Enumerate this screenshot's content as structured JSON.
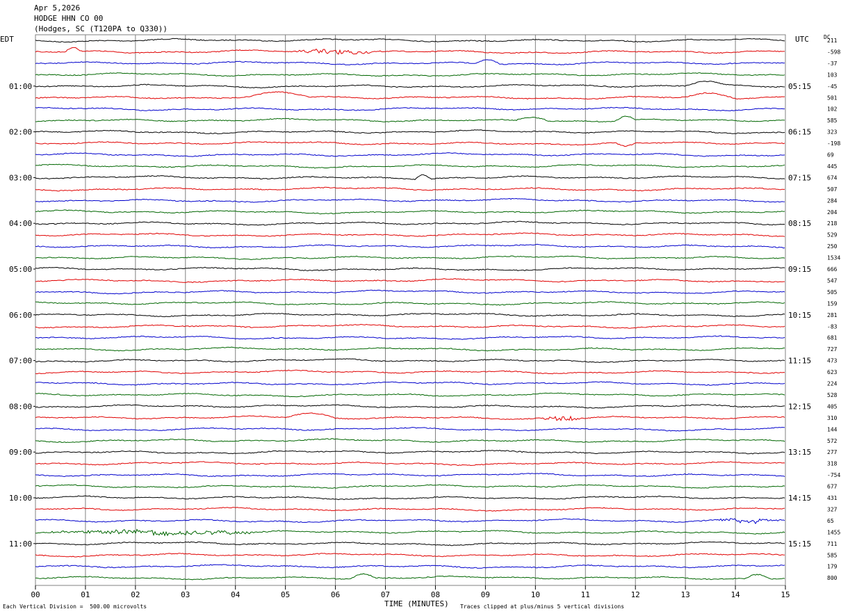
{
  "header": {
    "date": "Apr 5,2026",
    "station": "HODGE HHN CO 00",
    "location": "(Hodges, SC (T120PA to Q330))"
  },
  "left_tz": "EDT",
  "right_tz": "UTC",
  "dc_label": "DC",
  "footer": {
    "scale_note": "Each Vertical Division =  500.00 microvolts",
    "clip_note": "Traces clipped at plus/minus 5 vertical divisions",
    "x_title": "TIME (MINUTES)"
  },
  "colors": {
    "black": "#000000",
    "red": "#e00000",
    "blue": "#0000cc",
    "green": "#006600",
    "grid": "#808080"
  },
  "chart_data": {
    "type": "line",
    "title": "HODGE HHN CO 00",
    "xlabel": "TIME (MINUTES)",
    "xlim": [
      0,
      15
    ],
    "x_ticks": [
      "00",
      "01",
      "02",
      "03",
      "04",
      "05",
      "06",
      "07",
      "08",
      "09",
      "10",
      "11",
      "12",
      "13",
      "14",
      "15"
    ],
    "rows": 48,
    "minutes_per_row": 15,
    "trace_colors_cycle": [
      "black",
      "red",
      "blue",
      "green"
    ],
    "left_time_labels": [
      "01:00",
      "02:00",
      "03:00",
      "04:00",
      "05:00",
      "06:00",
      "07:00",
      "08:00",
      "09:00",
      "10:00",
      "11:00"
    ],
    "right_time_labels": [
      "05:15",
      "06:15",
      "07:15",
      "08:15",
      "09:15",
      "10:15",
      "11:15",
      "12:15",
      "13:15",
      "14:15",
      "15:15"
    ],
    "time_label_every_rows": 4,
    "dc_offsets": [
      "211",
      "-598",
      "-37",
      "103",
      "-45",
      "501",
      "102",
      "585",
      "323",
      "-198",
      "69",
      "445",
      "674",
      "507",
      "284",
      "204",
      "218",
      "529",
      "250",
      "1534",
      "666",
      "547",
      "505",
      "159",
      "281",
      "-83",
      "681",
      "727",
      "473",
      "623",
      "224",
      "528",
      "405",
      "310",
      "144",
      "572",
      "277",
      "318",
      "-754",
      "677",
      "431",
      "327",
      "65",
      "1455",
      "711",
      "585",
      "179",
      "800"
    ],
    "events": [
      {
        "row": 1,
        "x": [
          0.6,
          0.9
        ],
        "shape": "bump"
      },
      {
        "row": 1,
        "x": [
          5.0,
          7.0
        ],
        "shape": "noisy"
      },
      {
        "row": 2,
        "x": [
          8.8,
          9.3
        ],
        "shape": "bump"
      },
      {
        "row": 5,
        "x": [
          4.3,
          5.5
        ],
        "shape": "bump"
      },
      {
        "row": 5,
        "x": [
          13.0,
          14.0
        ],
        "shape": "bump"
      },
      {
        "row": 4,
        "x": [
          13.0,
          13.8
        ],
        "shape": "bump"
      },
      {
        "row": 7,
        "x": [
          9.6,
          10.3
        ],
        "shape": "bump"
      },
      {
        "row": 7,
        "x": [
          11.6,
          12.0
        ],
        "shape": "bump"
      },
      {
        "row": 9,
        "x": [
          11.6,
          12.0
        ],
        "shape": "dip"
      },
      {
        "row": 12,
        "x": [
          7.6,
          7.9
        ],
        "shape": "bump"
      },
      {
        "row": 33,
        "x": [
          5.0,
          6.0
        ],
        "shape": "bump"
      },
      {
        "row": 33,
        "x": [
          10.0,
          11.0
        ],
        "shape": "noisy"
      },
      {
        "row": 42,
        "x": [
          13.5,
          15.0
        ],
        "shape": "noisy"
      },
      {
        "row": 43,
        "x": [
          0.0,
          5.0
        ],
        "shape": "noisy"
      },
      {
        "row": 47,
        "x": [
          6.3,
          6.8
        ],
        "shape": "bump"
      },
      {
        "row": 47,
        "x": [
          14.2,
          14.7
        ],
        "shape": "bump"
      }
    ]
  }
}
